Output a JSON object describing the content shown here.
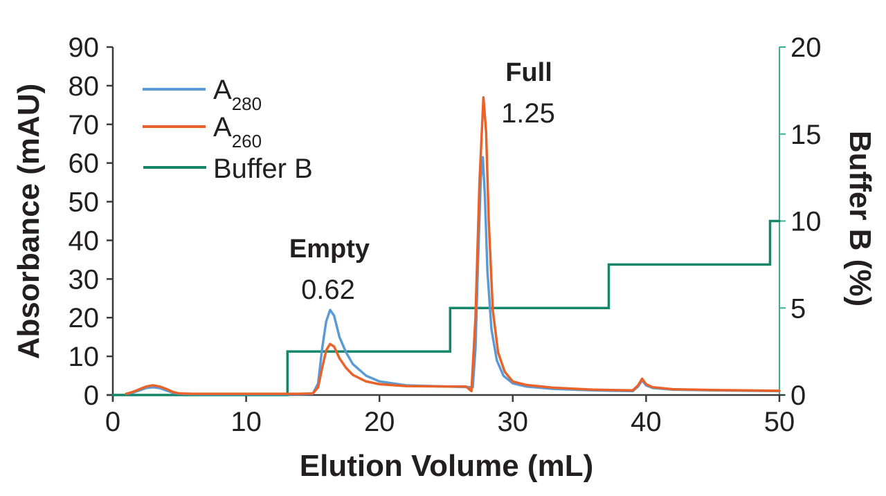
{
  "chart_data": {
    "type": "line",
    "title": "",
    "xlabel": "Elution Volume (mL)",
    "ylabel": "Absorbance (mAU)",
    "y2label": "Buffer B (%)",
    "xlim": [
      0,
      50
    ],
    "ylim": [
      0,
      90
    ],
    "y2lim": [
      0,
      20
    ],
    "x_ticks": [
      0,
      10,
      20,
      30,
      40,
      50
    ],
    "y_ticks": [
      0,
      10,
      20,
      30,
      40,
      50,
      60,
      70,
      80,
      90
    ],
    "y2_ticks": [
      0,
      5,
      10,
      15,
      20
    ],
    "grid": false,
    "legend_position": "upper left",
    "series": [
      {
        "name": "A280",
        "label_main": "A",
        "label_sub": "280",
        "color": "#5b9bd5",
        "axis": "left",
        "x": [
          1.0,
          1.5,
          2.0,
          2.5,
          3.0,
          3.5,
          4.0,
          4.5,
          5.0,
          6.0,
          8.0,
          10.0,
          12.0,
          14.0,
          15.0,
          15.4,
          15.7,
          16.0,
          16.3,
          16.6,
          17.0,
          17.5,
          18.0,
          19.0,
          20.0,
          22.0,
          25.0,
          27.0,
          27.2,
          27.4,
          27.6,
          27.75,
          27.9,
          28.1,
          28.4,
          28.8,
          29.3,
          30.0,
          31.0,
          33.0,
          36.0,
          39.0,
          39.4,
          39.7,
          40.0,
          40.5,
          42.0,
          45.0,
          50.0
        ],
        "values": [
          0.3,
          0.6,
          1.2,
          1.8,
          2.0,
          1.8,
          1.2,
          0.6,
          0.3,
          0.2,
          0.2,
          0.2,
          0.2,
          0.2,
          0.3,
          3.0,
          12.0,
          19.0,
          22.0,
          20.5,
          15.0,
          11.0,
          8.0,
          5.0,
          3.5,
          2.5,
          2.2,
          2.0,
          12.0,
          35.0,
          56.0,
          61.5,
          52.0,
          32.0,
          17.0,
          9.0,
          5.0,
          3.0,
          2.2,
          1.6,
          1.2,
          1.0,
          2.2,
          3.8,
          2.5,
          1.8,
          1.4,
          1.2,
          1.0
        ]
      },
      {
        "name": "A260",
        "label_main": "A",
        "label_sub": "260",
        "color": "#e8622a",
        "axis": "left",
        "x": [
          1.0,
          1.5,
          2.0,
          2.5,
          3.0,
          3.5,
          4.0,
          4.5,
          5.0,
          6.0,
          8.0,
          10.0,
          12.0,
          14.0,
          15.0,
          15.4,
          15.7,
          16.0,
          16.3,
          16.6,
          17.0,
          17.5,
          18.0,
          19.0,
          20.0,
          22.0,
          25.0,
          26.5,
          26.9,
          27.2,
          27.5,
          27.8,
          28.0,
          28.2,
          28.5,
          28.9,
          29.4,
          30.0,
          31.0,
          33.0,
          36.0,
          39.0,
          39.4,
          39.7,
          40.0,
          40.5,
          42.0,
          45.0,
          50.0
        ],
        "values": [
          0.3,
          0.8,
          1.5,
          2.2,
          2.5,
          2.2,
          1.6,
          0.8,
          0.4,
          0.3,
          0.3,
          0.3,
          0.3,
          0.3,
          0.4,
          2.0,
          7.0,
          11.5,
          13.2,
          12.5,
          9.5,
          7.0,
          5.2,
          3.5,
          2.8,
          2.3,
          2.2,
          2.2,
          1.0,
          20.0,
          55.0,
          77.0,
          68.0,
          45.0,
          22.0,
          11.0,
          6.0,
          3.5,
          2.6,
          1.9,
          1.4,
          1.2,
          2.5,
          4.2,
          2.8,
          2.0,
          1.5,
          1.3,
          1.1
        ]
      },
      {
        "name": "Buffer B",
        "color": "#15866a",
        "axis": "right",
        "step": true,
        "x": [
          0.0,
          13.1,
          13.1,
          25.3,
          25.3,
          37.2,
          37.2,
          49.3,
          49.3,
          50.0
        ],
        "values": [
          0,
          0,
          2.5,
          2.5,
          5,
          5,
          7.5,
          7.5,
          10,
          10
        ]
      }
    ],
    "annotations": [
      {
        "title": "Empty",
        "value": "0.62",
        "x": 16.3
      },
      {
        "title": "Full",
        "value": "1.25",
        "x": 27.8
      }
    ]
  },
  "legend": {
    "items": [
      {
        "main": "A",
        "sub": "280",
        "color": "#5b9bd5"
      },
      {
        "main": "A",
        "sub": "260",
        "color": "#e8622a"
      },
      {
        "main": "Buffer B",
        "sub": "",
        "color": "#15866a"
      }
    ]
  },
  "axes": {
    "x_title": "Elution Volume (mL)",
    "y_title": "Absorbance (mAU)",
    "y2_title": "Buffer B (%)",
    "x_tick_labels": [
      "0",
      "10",
      "20",
      "30",
      "40",
      "50"
    ],
    "y_tick_labels": [
      "0",
      "10",
      "20",
      "30",
      "40",
      "50",
      "60",
      "70",
      "80",
      "90"
    ],
    "y2_tick_labels": [
      "0",
      "5",
      "10",
      "15",
      "20"
    ],
    "axis_color": "#3a3a3a",
    "y2_axis_color": "#3fae8e"
  },
  "annotations": {
    "empty_title": "Empty",
    "empty_value": "0.62",
    "full_title": "Full",
    "full_value": "1.25"
  }
}
